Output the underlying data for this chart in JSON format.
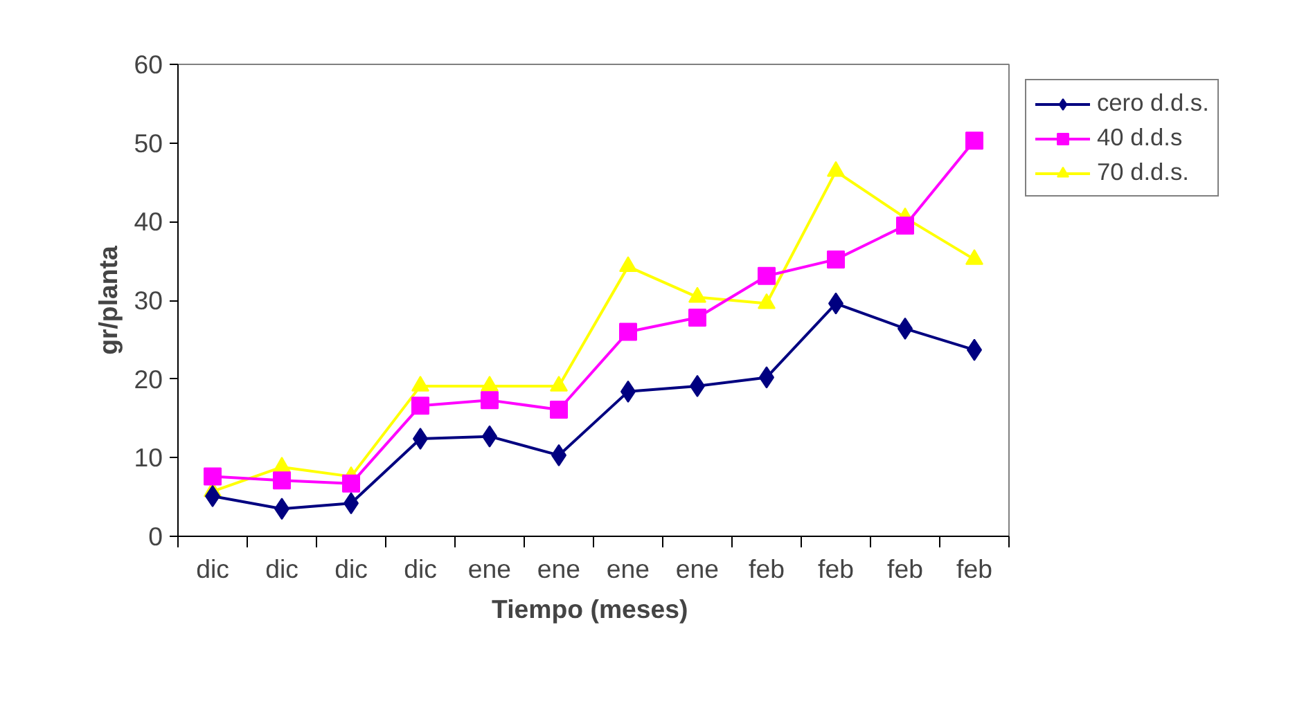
{
  "chart_data": {
    "type": "line",
    "xlabel": "Tiempo  (meses)",
    "ylabel": "gr/planta",
    "categories": [
      "dic",
      "dic",
      "dic",
      "dic",
      "ene",
      "ene",
      "ene",
      "ene",
      "feb",
      "feb",
      "feb",
      "feb"
    ],
    "ylim": [
      0,
      60
    ],
    "yticks": [
      0,
      10,
      20,
      30,
      40,
      50,
      60
    ],
    "grid": false,
    "legend": "right",
    "series": [
      {
        "name": "cero d.d.s.",
        "color": "#000080",
        "marker": "diamond",
        "values": [
          5.1,
          3.5,
          4.2,
          12.4,
          12.7,
          10.3,
          18.4,
          19.1,
          20.2,
          29.6,
          26.4,
          23.7
        ]
      },
      {
        "name": "40 d.d.s",
        "color": "#ff00ff",
        "marker": "square",
        "values": [
          7.6,
          7.1,
          6.7,
          16.6,
          17.3,
          16.1,
          26.0,
          27.8,
          33.1,
          35.2,
          39.5,
          50.3
        ]
      },
      {
        "name": "70 d.d.s.",
        "color": "#ffff00",
        "marker": "triangle",
        "values": [
          5.7,
          8.8,
          7.6,
          19.1,
          19.1,
          19.1,
          34.3,
          30.4,
          29.6,
          46.4,
          40.5,
          35.2
        ]
      }
    ]
  }
}
